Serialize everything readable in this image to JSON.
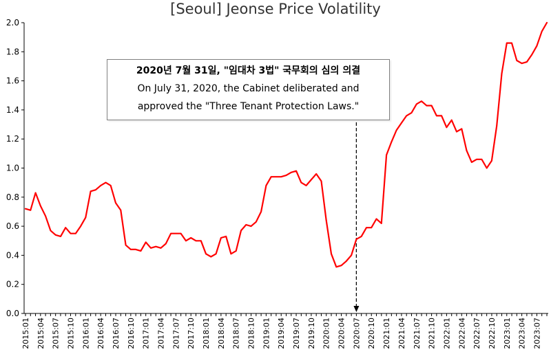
{
  "chart_data": {
    "type": "line",
    "title": "[Seoul] Jeonse Price Volatility",
    "xlabel": "",
    "ylabel": "",
    "ylim": [
      0,
      2.0
    ],
    "yticks": [
      0.0,
      0.2,
      0.4,
      0.6,
      0.8,
      1.0,
      1.2,
      1.4,
      1.6,
      1.8,
      2.0
    ],
    "ytick_labels": [
      "0.0",
      "0.2",
      "0.4",
      "0.6",
      "0.8",
      "1.0",
      "1.2",
      "1.4",
      "1.6",
      "1.8",
      "2.0"
    ],
    "grid": false,
    "legend": "none",
    "line_color": "#ff0000",
    "x_tick_labels": [
      "2015:01",
      "2015:04",
      "2015:07",
      "2015:10",
      "2016:01",
      "2016:04",
      "2016:07",
      "2016:10",
      "2017:01",
      "2017:04",
      "2017:07",
      "2017:10",
      "2018:01",
      "2018:04",
      "2018:07",
      "2018:10",
      "2019:01",
      "2019:04",
      "2019:07",
      "2019:10",
      "2020:01",
      "2020:04",
      "2020:07",
      "2020:10",
      "2021:01",
      "2021:04",
      "2021:07",
      "2021:10",
      "2022:01",
      "2022:04",
      "2022:07",
      "2022:10",
      "2023:01",
      "2023:04",
      "2023:07"
    ],
    "x": [
      "2015:01",
      "2015:02",
      "2015:03",
      "2015:04",
      "2015:05",
      "2015:06",
      "2015:07",
      "2015:08",
      "2015:09",
      "2015:10",
      "2015:11",
      "2015:12",
      "2016:01",
      "2016:02",
      "2016:03",
      "2016:04",
      "2016:05",
      "2016:06",
      "2016:07",
      "2016:08",
      "2016:09",
      "2016:10",
      "2016:11",
      "2016:12",
      "2017:01",
      "2017:02",
      "2017:03",
      "2017:04",
      "2017:05",
      "2017:06",
      "2017:07",
      "2017:08",
      "2017:09",
      "2017:10",
      "2017:11",
      "2017:12",
      "2018:01",
      "2018:02",
      "2018:03",
      "2018:04",
      "2018:05",
      "2018:06",
      "2018:07",
      "2018:08",
      "2018:09",
      "2018:10",
      "2018:11",
      "2018:12",
      "2019:01",
      "2019:02",
      "2019:03",
      "2019:04",
      "2019:05",
      "2019:06",
      "2019:07",
      "2019:08",
      "2019:09",
      "2019:10",
      "2019:11",
      "2019:12",
      "2020:01",
      "2020:02",
      "2020:03",
      "2020:04",
      "2020:05",
      "2020:06",
      "2020:07",
      "2020:08",
      "2020:09",
      "2020:10",
      "2020:11",
      "2020:12",
      "2021:01",
      "2021:02",
      "2021:03",
      "2021:04",
      "2021:05",
      "2021:06",
      "2021:07",
      "2021:08",
      "2021:09",
      "2021:10",
      "2021:11",
      "2021:12",
      "2022:01",
      "2022:02",
      "2022:03",
      "2022:04",
      "2022:05",
      "2022:06",
      "2022:07",
      "2022:08",
      "2022:09",
      "2022:10",
      "2022:11",
      "2022:12",
      "2023:01",
      "2023:02",
      "2023:03",
      "2023:04",
      "2023:05",
      "2023:06",
      "2023:07",
      "2023:08",
      "2023:09"
    ],
    "values": [
      0.72,
      0.71,
      0.83,
      0.74,
      0.67,
      0.57,
      0.54,
      0.53,
      0.59,
      0.55,
      0.55,
      0.6,
      0.66,
      0.84,
      0.85,
      0.88,
      0.9,
      0.88,
      0.76,
      0.71,
      0.47,
      0.44,
      0.44,
      0.43,
      0.49,
      0.45,
      0.46,
      0.45,
      0.48,
      0.55,
      0.55,
      0.55,
      0.5,
      0.52,
      0.5,
      0.5,
      0.41,
      0.39,
      0.41,
      0.52,
      0.53,
      0.41,
      0.43,
      0.57,
      0.61,
      0.6,
      0.63,
      0.7,
      0.88,
      0.94,
      0.94,
      0.94,
      0.95,
      0.97,
      0.98,
      0.9,
      0.88,
      0.92,
      0.96,
      0.91,
      0.64,
      0.41,
      0.32,
      0.33,
      0.36,
      0.4,
      0.51,
      0.53,
      0.59,
      0.59,
      0.65,
      0.62,
      1.09,
      1.18,
      1.26,
      1.31,
      1.36,
      1.38,
      1.44,
      1.46,
      1.43,
      1.43,
      1.36,
      1.36,
      1.28,
      1.33,
      1.25,
      1.27,
      1.12,
      1.04,
      1.06,
      1.06,
      1.0,
      1.05,
      1.29,
      1.65,
      1.86,
      1.86,
      1.74,
      1.72,
      1.73,
      1.78,
      1.84,
      1.94,
      2.0
    ],
    "annotations": [
      {
        "x": "2020:07",
        "line1": "2020년 7월 31일, \"임대차 3법\" 국무회의 심의 의결",
        "line2": "On July 31, 2020, the Cabinet deliberated and",
        "line3": "approved the \"Three Tenant Protection Laws.\""
      }
    ]
  }
}
